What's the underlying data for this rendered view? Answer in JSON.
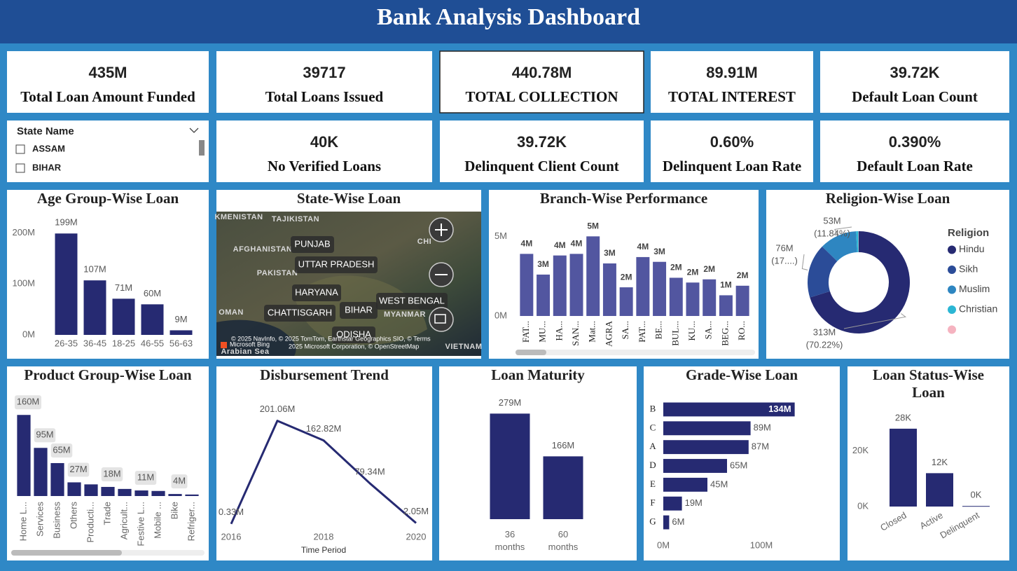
{
  "header": {
    "title": "Bank Analysis Dashboard"
  },
  "kpis": [
    {
      "value": "435M",
      "label": "Total Loan Amount Funded"
    },
    {
      "value": "39717",
      "label": "Total Loans Issued"
    },
    {
      "value": "440.78M",
      "label": "TOTAL COLLECTION"
    },
    {
      "value": "89.91M",
      "label": "TOTAL INTEREST"
    },
    {
      "value": "39.72K",
      "label": "Default Loan Count"
    },
    {
      "value": "40K",
      "label": "No Verified Loans"
    },
    {
      "value": "39.72K",
      "label": "Delinquent Client Count"
    },
    {
      "value": "0.60%",
      "label": "Delinquent Loan Rate"
    },
    {
      "value": "0.390%",
      "label": "Default Loan Rate"
    }
  ],
  "slicer": {
    "title": "State Name",
    "items": [
      "ASSAM",
      "BIHAR"
    ]
  },
  "map": {
    "title": "State-Wise Loan",
    "regions": [
      "KMENISTAN",
      "TAJIKISTAN",
      "AFGHANISTAN",
      "PAKISTAN",
      "OMAN",
      "MYANMAR",
      "CHI",
      "VIETNAM",
      "Arabian Sea"
    ],
    "places": [
      "PUNJAB",
      "UTTAR PRADESH",
      "HARYANA",
      "CHATTISGARH",
      "BIHAR",
      "WEST BENGAL",
      "ODISHA"
    ],
    "attribution": [
      "© 2025 NavInfo, © 2025 TomTom, Earthstar Geographics SIO, © Terms",
      "2025 Microsoft Corporation, © OpenStreetMap"
    ],
    "brand": "Microsoft Bing"
  },
  "chart_data": [
    {
      "type": "bar",
      "title": "Age Group-Wise Loan",
      "categories": [
        "26-35",
        "36-45",
        "18-25",
        "46-55",
        "56-63"
      ],
      "values": [
        199,
        107,
        71,
        60,
        9
      ],
      "value_labels": [
        "199M",
        "107M",
        "71M",
        "60M",
        "9M"
      ],
      "color": "#262a72",
      "ylim": [
        0,
        220
      ],
      "yticks": [
        {
          "value": 0,
          "label": "0M"
        },
        {
          "value": 100,
          "label": "100M"
        },
        {
          "value": 200,
          "label": "200M"
        }
      ]
    },
    {
      "type": "bar",
      "title": "Branch-Wise Performance",
      "categories": [
        "FAT...",
        "MU...",
        "HA...",
        "SAN...",
        "Mat...",
        "AGRA",
        "SA...",
        "PAT...",
        "BE...",
        "BUL...",
        "KU...",
        "SA...",
        "BEG...",
        "RO..."
      ],
      "values": [
        3.9,
        2.6,
        3.8,
        3.9,
        5.0,
        3.3,
        1.8,
        3.7,
        3.4,
        2.4,
        2.1,
        2.3,
        1.3,
        1.9
      ],
      "value_labels": [
        "4M",
        "3M",
        "4M",
        "4M",
        "5M",
        "3M",
        "2M",
        "4M",
        "3M",
        "2M",
        "2M",
        "2M",
        "1M",
        "2M"
      ],
      "color": "#5256a0",
      "ylim": [
        0,
        5.5
      ],
      "yticks": [
        {
          "value": 0,
          "label": "0M"
        },
        {
          "value": 5,
          "label": "5M"
        }
      ]
    },
    {
      "type": "donut",
      "title": "Religion-Wise Loan",
      "legend_title": "Religion",
      "categories": [
        "Hindu",
        "Sikh",
        "Muslim",
        "Christian",
        null
      ],
      "values": [
        313.4,
        76.4,
        52.8,
        3.2,
        0.5
      ],
      "value_labels": [
        "313M",
        "76M",
        "53M",
        null,
        null
      ],
      "percent_labels": [
        "(70.22%)",
        "(17....)",
        "(11.84%)",
        null,
        null
      ],
      "colors": [
        "#262a72",
        "#2b4c98",
        "#2e86c1",
        "#2bb6d4",
        "#f5b3c0"
      ]
    },
    {
      "type": "bar",
      "title": "Product Group-Wise Loan",
      "categories": [
        "Home L...",
        "Services",
        "Business",
        "Others",
        "Producti...",
        "Trade",
        "Agricult...",
        "Festive L...",
        "Mobile ...",
        "Bike",
        "Refriger..."
      ],
      "values": [
        160,
        95,
        65,
        27,
        23,
        18,
        14,
        11,
        10,
        4,
        3
      ],
      "value_labels": [
        "160M",
        "95M",
        "65M",
        "27M",
        null,
        "18M",
        null,
        "11M",
        null,
        "4M",
        null
      ],
      "color": "#262a72",
      "ylim": [
        0,
        170
      ]
    },
    {
      "type": "line",
      "title": "Disbursement Trend",
      "x": [
        2016,
        2017,
        2018,
        2019,
        2020
      ],
      "values": [
        0.33,
        201.06,
        162.82,
        79.34,
        2.05
      ],
      "value_labels": [
        "0.33M",
        "201.06M",
        "162.82M",
        "79.34M",
        "2.05M"
      ],
      "color": "#262a72",
      "xlim": [
        2016,
        2020
      ],
      "xticks": [
        2016,
        2018,
        2020
      ],
      "ylim": [
        0,
        240
      ],
      "x_label": "Time Period"
    },
    {
      "type": "bar",
      "title": "Loan Maturity",
      "categories": [
        "36 months",
        "60 months"
      ],
      "values": [
        279,
        166
      ],
      "value_labels": [
        "279M",
        "166M"
      ],
      "color": "#262a72",
      "ylim": [
        0,
        300
      ]
    },
    {
      "type": "barh",
      "title": "Grade-Wise Loan",
      "categories": [
        "B",
        "C",
        "A",
        "D",
        "E",
        "F",
        "G"
      ],
      "values": [
        134,
        89,
        87,
        65,
        45,
        19,
        6
      ],
      "value_labels": [
        "134M",
        "89M",
        "87M",
        "65M",
        "45M",
        "19M",
        "6M"
      ],
      "color": "#262a72",
      "xlim": [
        0,
        150
      ],
      "xticks": [
        {
          "value": 0,
          "label": "0M"
        },
        {
          "value": 100,
          "label": "100M"
        }
      ]
    },
    {
      "type": "bar",
      "title": "Loan Status-Wise Loan",
      "categories": [
        "Closed",
        "Active",
        "Delinquent"
      ],
      "values": [
        28,
        12,
        0.2
      ],
      "value_labels": [
        "28K",
        "12K",
        "0K"
      ],
      "color": "#262a72",
      "ylim": [
        0,
        32
      ],
      "yticks": [
        {
          "value": 0,
          "label": "0K"
        },
        {
          "value": 20,
          "label": "20K"
        }
      ]
    }
  ]
}
